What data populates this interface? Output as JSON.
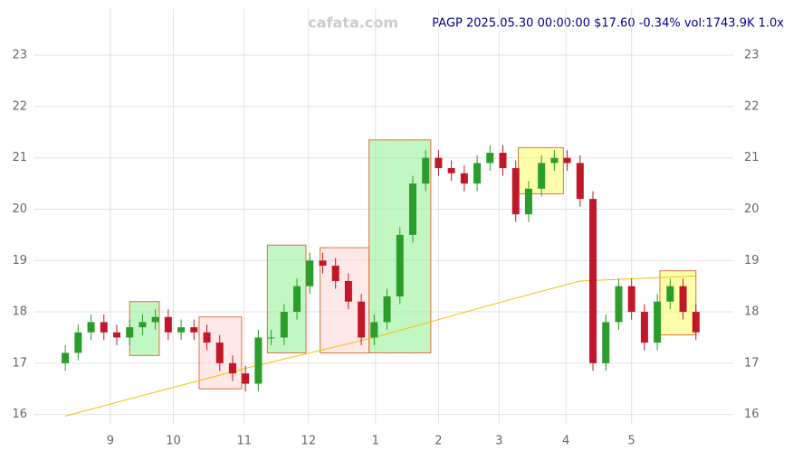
{
  "chart_data": {
    "type": "candlestick",
    "watermark": "cafata.com",
    "title": "PAGP 2025.05.30 00:00:00 $17.60 -0.34% vol:1743.9K 1.0x",
    "open": [
      17.0,
      17.2,
      17.6,
      17.8,
      17.6,
      17.5,
      17.7,
      17.8,
      17.9,
      17.6,
      17.7,
      17.6,
      17.4,
      17.0,
      16.8,
      16.6,
      17.5,
      17.5,
      18.0,
      18.5,
      19.0,
      18.9,
      18.6,
      18.2,
      17.5,
      17.8,
      18.3,
      19.5,
      20.5,
      21.0,
      20.8,
      20.7,
      20.5,
      20.9,
      21.1,
      20.8,
      19.9,
      20.4,
      20.9,
      21.0,
      20.9,
      20.2,
      17.0,
      17.8,
      18.5,
      18.0,
      17.4,
      18.2,
      18.5,
      18.0
    ],
    "high": [
      17.35,
      17.75,
      17.95,
      17.95,
      17.75,
      17.85,
      17.95,
      18.05,
      18.05,
      17.85,
      17.85,
      17.75,
      17.55,
      17.15,
      16.95,
      17.65,
      17.65,
      18.15,
      18.65,
      19.15,
      19.15,
      19.05,
      18.75,
      18.35,
      17.95,
      18.45,
      19.65,
      20.65,
      21.15,
      21.15,
      20.95,
      20.85,
      21.05,
      21.25,
      21.25,
      20.95,
      20.55,
      21.05,
      21.15,
      21.15,
      21.05,
      20.35,
      17.95,
      18.65,
      18.65,
      18.15,
      18.35,
      18.65,
      18.65,
      18.15
    ],
    "low": [
      16.85,
      17.05,
      17.45,
      17.45,
      17.35,
      17.35,
      17.55,
      17.65,
      17.45,
      17.45,
      17.45,
      17.25,
      16.85,
      16.65,
      16.45,
      16.45,
      17.35,
      17.35,
      17.85,
      18.35,
      18.75,
      18.45,
      18.05,
      17.35,
      17.35,
      17.65,
      18.15,
      19.35,
      20.35,
      20.65,
      20.55,
      20.35,
      20.35,
      20.75,
      20.65,
      19.75,
      19.75,
      20.25,
      20.75,
      20.75,
      20.05,
      16.85,
      16.85,
      17.65,
      17.85,
      17.25,
      17.25,
      18.05,
      17.85,
      17.45
    ],
    "close": [
      17.2,
      17.6,
      17.8,
      17.6,
      17.5,
      17.7,
      17.8,
      17.9,
      17.6,
      17.7,
      17.6,
      17.4,
      17.0,
      16.8,
      16.6,
      17.5,
      17.5,
      18.0,
      18.5,
      19.0,
      18.9,
      18.6,
      18.2,
      17.5,
      17.8,
      18.3,
      19.5,
      20.5,
      21.0,
      20.8,
      20.7,
      20.5,
      20.9,
      21.1,
      20.8,
      19.9,
      20.4,
      20.9,
      21.0,
      20.9,
      20.2,
      17.0,
      17.8,
      18.5,
      18.0,
      17.4,
      18.2,
      18.5,
      18.0,
      17.6
    ],
    "up_color": "#2a9d2a",
    "down_color": "#c0182a",
    "ma": {
      "color": "#f2c200",
      "x": [
        0,
        14,
        24,
        34,
        40,
        49
      ],
      "values": [
        15.97,
        16.9,
        17.5,
        18.2,
        18.6,
        18.7
      ]
    },
    "zones": [
      {
        "x": [
          5,
          7.3
        ],
        "range": [
          17.15,
          18.2
        ],
        "color": "#90ee90"
      },
      {
        "x": [
          10.4,
          13.7
        ],
        "range": [
          16.5,
          17.9
        ],
        "color": "#ffd6d6"
      },
      {
        "x": [
          15.7,
          18.7
        ],
        "range": [
          17.2,
          19.3
        ],
        "color": "#90ee90"
      },
      {
        "x": [
          19.8,
          23.6
        ],
        "range": [
          17.2,
          19.25
        ],
        "color": "#ffd6d6"
      },
      {
        "x": [
          23.6,
          28.4
        ],
        "range": [
          17.2,
          21.35
        ],
        "color": "#90ee90"
      },
      {
        "x": [
          35.2,
          38.7
        ],
        "range": [
          20.3,
          21.2
        ],
        "color": "#ffff66"
      },
      {
        "x": [
          46.2,
          49
        ],
        "range": [
          17.55,
          18.8
        ],
        "color": "#ffff66"
      }
    ],
    "xlim": [
      -2.4,
      51.9
    ],
    "xticks": [
      {
        "value": 3.5,
        "label": "9"
      },
      {
        "value": 8.4,
        "label": "10"
      },
      {
        "value": 13.9,
        "label": "11"
      },
      {
        "value": 18.9,
        "label": "12"
      },
      {
        "value": 24.1,
        "label": "1"
      },
      {
        "value": 29,
        "label": "2"
      },
      {
        "value": 33.7,
        "label": "3"
      },
      {
        "value": 38.9,
        "label": "4"
      },
      {
        "value": 44,
        "label": "5"
      }
    ],
    "ylim": [
      15.8,
      23.9
    ],
    "yticks": [
      16,
      17,
      18,
      19,
      20,
      21,
      22,
      23
    ],
    "grid": true
  }
}
